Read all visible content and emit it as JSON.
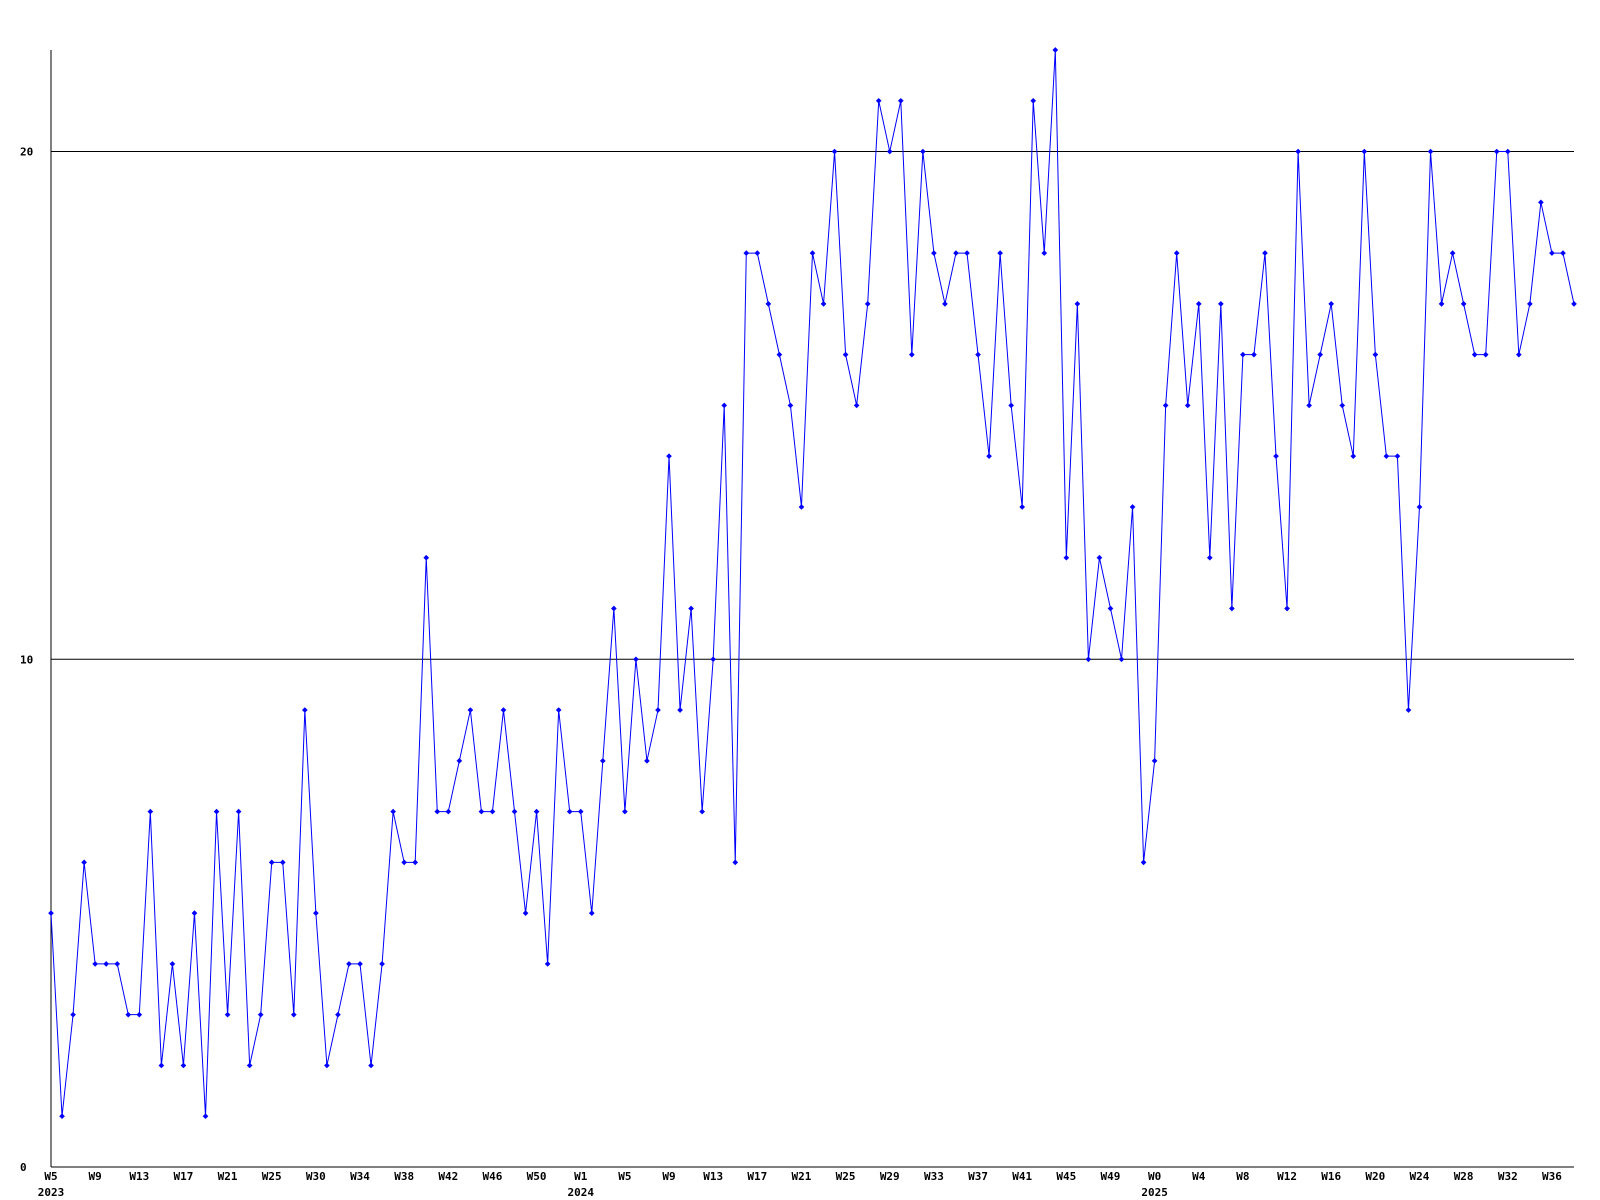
{
  "chart_data": {
    "type": "line",
    "categories": [
      "W5",
      null,
      null,
      null,
      "W9",
      null,
      null,
      null,
      "W13",
      null,
      null,
      null,
      "W17",
      null,
      null,
      null,
      "W21",
      null,
      null,
      null,
      "W25",
      null,
      null,
      null,
      "W30",
      null,
      null,
      null,
      "W34",
      null,
      null,
      null,
      "W38",
      null,
      null,
      null,
      "W42",
      null,
      null,
      null,
      "W46",
      null,
      null,
      null,
      "W50",
      null,
      null,
      null,
      "W1",
      null,
      null,
      null,
      "W5",
      null,
      null,
      null,
      "W9",
      null,
      null,
      null,
      "W13",
      null,
      null,
      null,
      "W17",
      null,
      null,
      null,
      "W21",
      null,
      null,
      null,
      "W25",
      null,
      null,
      null,
      "W29",
      null,
      null,
      null,
      "W33",
      null,
      null,
      null,
      "W37",
      null,
      null,
      null,
      "W41",
      null,
      null,
      null,
      "W45",
      null,
      null,
      null,
      "W49",
      null,
      null,
      null,
      "W0",
      null,
      null,
      null,
      "W4",
      null,
      null,
      null,
      "W8",
      null,
      null,
      null,
      "W12",
      null,
      null,
      null,
      "W16",
      null,
      null,
      null,
      "W20",
      null,
      null,
      null,
      "W24",
      null,
      null,
      null,
      "W28",
      null,
      null,
      null,
      "W32",
      null,
      null,
      null,
      "W36",
      null,
      null
    ],
    "years": [
      "2023",
      null,
      null,
      null,
      null,
      null,
      null,
      null,
      null,
      null,
      null,
      null,
      null,
      null,
      null,
      null,
      null,
      null,
      null,
      null,
      null,
      null,
      null,
      null,
      null,
      null,
      null,
      null,
      null,
      null,
      null,
      null,
      null,
      null,
      null,
      null,
      null,
      null,
      null,
      null,
      null,
      null,
      null,
      null,
      null,
      null,
      null,
      null,
      "2024",
      null,
      null,
      null,
      null,
      null,
      null,
      null,
      null,
      null,
      null,
      null,
      null,
      null,
      null,
      null,
      null,
      null,
      null,
      null,
      null,
      null,
      null,
      null,
      null,
      null,
      null,
      null,
      null,
      null,
      null,
      null,
      null,
      null,
      null,
      null,
      null,
      null,
      null,
      null,
      null,
      null,
      null,
      null,
      null,
      null,
      null,
      null,
      null,
      null,
      null,
      null,
      "2025",
      null,
      null,
      null,
      null,
      null,
      null,
      null,
      null,
      null,
      null,
      null,
      null,
      null,
      null,
      null,
      null,
      null,
      null,
      null,
      null,
      null,
      null,
      null,
      null,
      null,
      null,
      null,
      null,
      null,
      null,
      null,
      null,
      null,
      null,
      null,
      null,
      null,
      null
    ],
    "series": [
      {
        "color": "#0000ff",
        "values": [
          5,
          1,
          3,
          6,
          4,
          4,
          4,
          3,
          3,
          7,
          2,
          4,
          2,
          5,
          1,
          7,
          3,
          7,
          2,
          3,
          6,
          6,
          3,
          9,
          5,
          2,
          3,
          4,
          4,
          2,
          4,
          7,
          6,
          6,
          12,
          7,
          7,
          8,
          9,
          7,
          7,
          9,
          7,
          5,
          7,
          4,
          9,
          7,
          7,
          5,
          8,
          11,
          7,
          10,
          8,
          9,
          14,
          9,
          11,
          7,
          10,
          15,
          6,
          18,
          18,
          17,
          16,
          15,
          13,
          18,
          17,
          20,
          16,
          15,
          17,
          21,
          20,
          21,
          16,
          20,
          18,
          17,
          18,
          18,
          16,
          14,
          18,
          15,
          13,
          21,
          18,
          22,
          12,
          17,
          10,
          12,
          11,
          10,
          13,
          6,
          8,
          15,
          18,
          15,
          17,
          12,
          17,
          11,
          16,
          16,
          18,
          14,
          11,
          20,
          15,
          16,
          17,
          15,
          14,
          20,
          16,
          14,
          14,
          9,
          13,
          20,
          17,
          18,
          17,
          16,
          16,
          20,
          20,
          16,
          17,
          19,
          18,
          18,
          17
        ]
      }
    ],
    "ylim": [
      0,
      22
    ],
    "yticks": [
      0,
      10,
      20
    ],
    "grid": true
  }
}
